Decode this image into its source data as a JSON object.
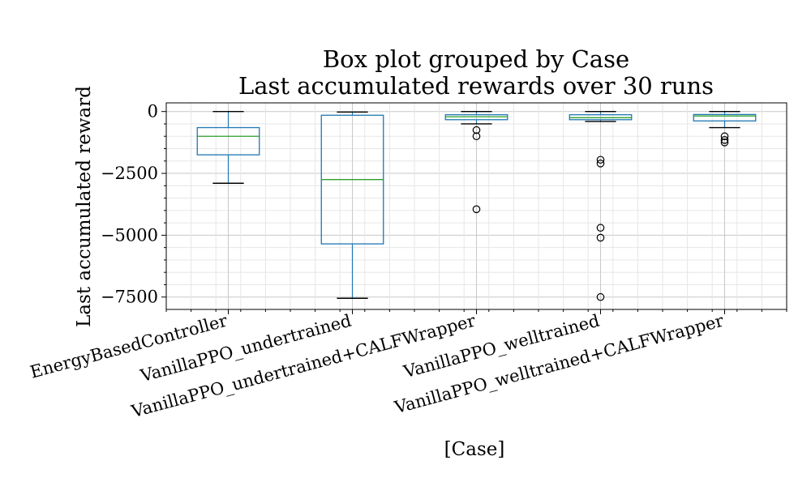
{
  "chart_data": {
    "type": "box",
    "title_lines": [
      "Box plot grouped by Case",
      "Last accumulated rewards over 30 runs"
    ],
    "xlabel": "[Case]",
    "ylabel": "Last accumulated reward",
    "ylim": [
      -8000,
      350
    ],
    "yticks": [
      0,
      -2500,
      -5000,
      -7500
    ],
    "ytick_labels": [
      "0",
      "−2500",
      "−5000",
      "−7500"
    ],
    "grid": true,
    "colors": {
      "box": "#1f77b4",
      "median": "#2ca02c",
      "whisker": "#1f77b4",
      "cap": "#000000",
      "flier": "#000000",
      "grid": "#d9d9d9"
    },
    "categories": [
      "EnergyBasedController",
      "VanillaPPO_undertrained",
      "VanillaPPO_undertrained+CALFWrapper",
      "VanillaPPO_welltrained",
      "VanillaPPO_welltrained+CALFWrapper"
    ],
    "boxes": [
      {
        "whislo": -2900,
        "q1": -1750,
        "med": -1000,
        "q3": -650,
        "whishi": 0,
        "fliers": []
      },
      {
        "whislo": -7550,
        "q1": -5350,
        "med": -2750,
        "q3": -150,
        "whishi": -20,
        "fliers": []
      },
      {
        "whislo": -500,
        "q1": -330,
        "med": -210,
        "q3": -130,
        "whishi": 0,
        "fliers": [
          -750,
          -1000,
          -3950
        ]
      },
      {
        "whislo": -400,
        "q1": -330,
        "med": -250,
        "q3": -130,
        "whishi": 0,
        "fliers": [
          -1950,
          -2100,
          -4700,
          -5100,
          -7500
        ]
      },
      {
        "whislo": -650,
        "q1": -380,
        "med": -180,
        "q3": -120,
        "whishi": 0,
        "fliers": [
          -1000,
          -1150,
          -1250
        ]
      }
    ]
  }
}
